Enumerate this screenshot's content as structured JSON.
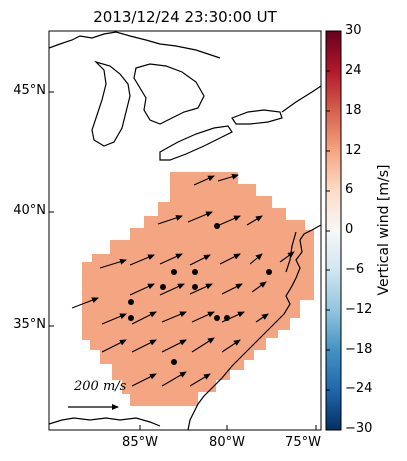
{
  "title": "2013/12/24 23:30:00 UT",
  "lat_ticks": [
    "45°N",
    "40°N",
    "35°N"
  ],
  "lon_ticks": [
    "85°W",
    "80°W",
    "75°W"
  ],
  "colorbar": {
    "label": "Vertical wind [m/s]",
    "ticks": [
      "30",
      "24",
      "18",
      "12",
      "6",
      "0",
      "−6",
      "−12",
      "−18",
      "−24",
      "−30"
    ],
    "range": [
      -30,
      30
    ]
  },
  "scale_label": "200 m/s",
  "colors": {
    "wind_field": "#f4a582",
    "cb_high": "#67001f",
    "cb_low": "#053061"
  },
  "chart_data": {
    "type": "map",
    "title": "2013/12/24 23:30:00 UT",
    "lat_range": [
      30.5,
      47.5
    ],
    "lon_range": [
      -89.5,
      -75
    ],
    "vertical_wind_value": 11,
    "reference_vector_ms": 200,
    "stations": [
      {
        "lon": -81.0,
        "lat": 39.4
      },
      {
        "lon": -83.0,
        "lat": 37.3
      },
      {
        "lon": -81.7,
        "lat": 37.3
      },
      {
        "lon": -77.1,
        "lat": 37.3
      },
      {
        "lon": -83.9,
        "lat": 36.5
      },
      {
        "lon": -81.7,
        "lat": 36.5
      },
      {
        "lon": -85.0,
        "lat": 35.9
      },
      {
        "lon": -85.0,
        "lat": 35.2
      },
      {
        "lon": -81.1,
        "lat": 35.2
      },
      {
        "lon": -80.6,
        "lat": 35.2
      },
      {
        "lon": -83.0,
        "lat": 33.4
      }
    ]
  }
}
